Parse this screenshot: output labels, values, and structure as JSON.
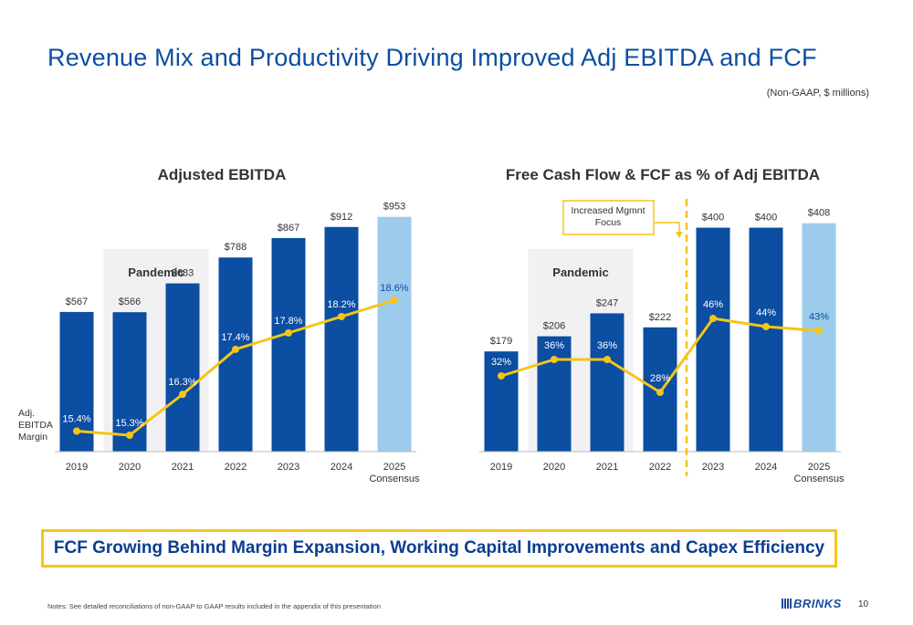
{
  "page": {
    "title": "Revenue Mix and Productivity Driving Improved Adj EBITDA and FCF",
    "units": "(Non-GAAP, $ millions)",
    "banner": "FCF Growing Behind Margin Expansion, Working Capital Improvements and Capex Efficiency",
    "notes": "Notes: See detailed reconciliations of non-GAAP to GAAP results included in the appendix of this presentation",
    "logo": "BRINKS",
    "page_number": "10"
  },
  "colors": {
    "dark_bar": "#0b4ea2",
    "light_bar": "#9ccbec",
    "line": "#f5c518",
    "band": "#f1f1f3"
  },
  "chart_data": [
    {
      "type": "bar",
      "title": "Adjusted EBITDA",
      "categories": [
        "2019",
        "2020",
        "2021",
        "2022",
        "2023",
        "2024",
        "2025\nConsensus"
      ],
      "series": [
        {
          "values": [
            567,
            566,
            683,
            788,
            867,
            912,
            953
          ],
          "labels": [
            "$567",
            "$566",
            "$683",
            "$788",
            "$867",
            "$912",
            "$953"
          ]
        },
        {
          "name": "Adj. EBITDA Margin",
          "type": "line",
          "values": [
            15.4,
            15.3,
            16.3,
            17.4,
            17.8,
            18.2,
            18.6
          ],
          "labels": [
            "15.4%",
            "15.3%",
            "16.3%",
            "17.4%",
            "17.8%",
            "18.2%",
            "18.6%"
          ]
        }
      ],
      "highlight_last_bar": true,
      "shaded_region": {
        "label": "Pandemic",
        "from": "2020",
        "to": "2021"
      },
      "ylim": [
        0,
        1000
      ],
      "line_label_lines": [
        "Adj.",
        "EBITDA",
        "Margin"
      ]
    },
    {
      "type": "bar",
      "title": "Free Cash Flow & FCF as % of Adj EBITDA",
      "categories": [
        "2019",
        "2020",
        "2021",
        "2022",
        "2023",
        "2024",
        "2025\nConsensus"
      ],
      "series": [
        {
          "values": [
            179,
            206,
            247,
            222,
            400,
            400,
            408
          ],
          "labels": [
            "$179",
            "$206",
            "$247",
            "$222",
            "$400",
            "$400",
            "$408"
          ]
        },
        {
          "type": "line",
          "values": [
            32,
            36,
            36,
            28,
            46,
            44,
            43
          ],
          "labels": [
            "32%",
            "36%",
            "36%",
            "28%",
            "46%",
            "44%",
            "43%"
          ]
        }
      ],
      "highlight_last_bar": true,
      "shaded_region": {
        "label": "Pandemic",
        "from": "2020",
        "to": "2021"
      },
      "annotation": {
        "text_lines": [
          "Increased Mgmnt",
          "Focus"
        ],
        "between": [
          "2022",
          "2023"
        ]
      },
      "ylim": [
        0,
        440
      ]
    }
  ]
}
